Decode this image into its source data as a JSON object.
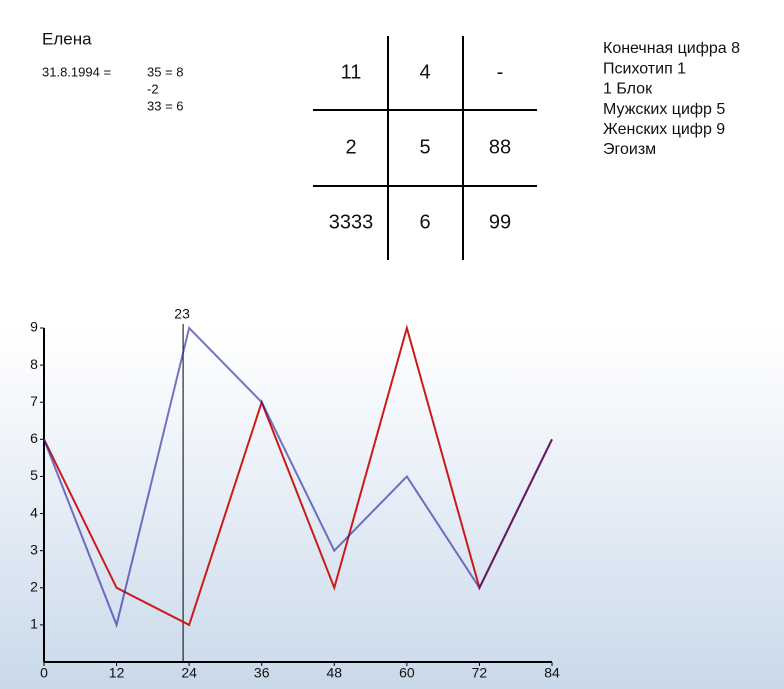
{
  "header": {
    "name": "Елена",
    "date": "31.8.1994 =",
    "calc": [
      "35 = 8",
      "-2",
      "33 = 6"
    ]
  },
  "table": {
    "rows": [
      [
        "11",
        "4",
        "-"
      ],
      [
        "2",
        "5",
        "88"
      ],
      [
        "3333",
        "6",
        "99"
      ]
    ]
  },
  "info": [
    "Конечная цифра 8",
    "Психотип 1",
    "1 Блок",
    "Мужских цифр 5",
    "Женских цифр 9",
    "Эгоизм"
  ],
  "chart_data": {
    "type": "line",
    "x": [
      0,
      12,
      24,
      36,
      48,
      60,
      72,
      84
    ],
    "series": [
      {
        "color": "#1a1a9a",
        "values": [
          6,
          1,
          9,
          7,
          3,
          5,
          2,
          6
        ]
      },
      {
        "color": "#cc1a1a",
        "values": [
          6,
          2,
          1,
          7,
          2,
          9,
          2,
          6
        ]
      }
    ],
    "xlim": [
      0,
      84
    ],
    "xticks": [
      0,
      12,
      24,
      36,
      48,
      60,
      72,
      84
    ],
    "ylim": [
      0,
      9
    ],
    "yticks": [
      1,
      2,
      3,
      4,
      5,
      6,
      7,
      8,
      9
    ],
    "marker_x": 23
  }
}
